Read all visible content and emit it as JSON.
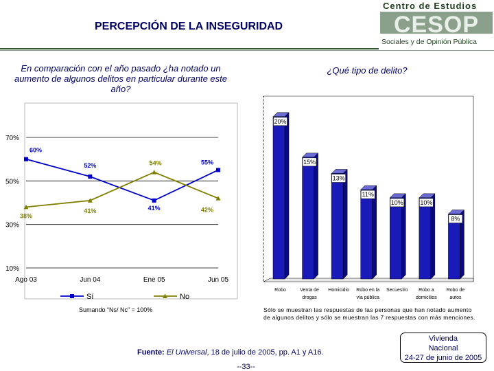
{
  "header": {
    "title": "PERCEPCIÓN DE LA INSEGURIDAD",
    "logo_line1": "Centro de Estudios",
    "logo_word": "CESOP",
    "logo_line2": "Sociales y de Opinión Pública"
  },
  "left_question": "En comparación con el año pasado ¿ha notado un aumento de algunos delitos en particular durante este año?",
  "right_question": "¿Qué tipo de delito?",
  "colors": {
    "si": "#0000cc",
    "no": "#808000",
    "bar": "#1a1ab8",
    "title": "#000066"
  },
  "chart_data": [
    {
      "type": "line",
      "categories": [
        "Ago 03",
        "Jun 04",
        "Ene 05",
        "Jun 05"
      ],
      "yticks": [
        "70%",
        "50%",
        "30%",
        "10%"
      ],
      "ytick_values": [
        70,
        50,
        30,
        10
      ],
      "ylim": [
        10,
        70
      ],
      "series": [
        {
          "name": "Sí",
          "values": [
            60,
            52,
            41,
            55
          ],
          "labels": [
            "60%",
            "52%",
            "41%",
            "55%"
          ]
        },
        {
          "name": "No",
          "values": [
            38,
            41,
            54,
            42
          ],
          "labels": [
            "38%",
            "41%",
            "54%",
            "42%"
          ]
        }
      ],
      "note": "Sumando “Ns/ Nc” = 100%"
    },
    {
      "type": "bar",
      "categories": [
        [
          "Robo"
        ],
        [
          "Venta de",
          "drogas"
        ],
        [
          "Homicidio"
        ],
        [
          "Robo en la",
          "vía pública"
        ],
        [
          "Secuestro"
        ],
        [
          "Robo a",
          "domicilios"
        ],
        [
          "Robo de",
          "autos"
        ]
      ],
      "values": [
        20,
        15,
        13,
        11,
        10,
        10,
        8
      ],
      "labels": [
        "20%",
        "15%",
        "13%",
        "11%",
        "10%",
        "10%",
        "8%"
      ],
      "ylim": [
        0,
        21
      ],
      "note": "Sólo se muestran las respuestas de las personas que han notado aumento de algunos delitos y sólo se muestran las 7 respuestas con más menciones."
    }
  ],
  "footer": {
    "source_label": "Fuente:",
    "source_pub": "El Universal",
    "source_rest": ", 18 de julio de 2005, pp. A1 y A16.",
    "page_number": "--33--",
    "survey_line1": "Vivienda",
    "survey_line2": "Nacional",
    "survey_line3": "24-27 de junio de 2005"
  }
}
